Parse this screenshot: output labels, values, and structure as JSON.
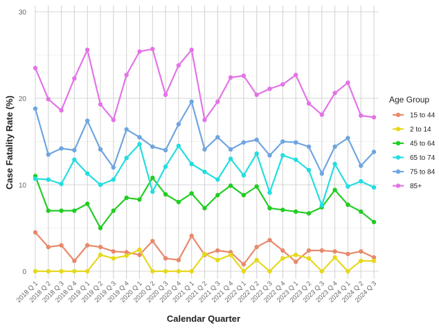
{
  "chart_data": {
    "type": "line",
    "xlabel": "Calendar Quarter",
    "ylabel": "Case Fatality Rate (%)",
    "ylim": [
      -1,
      30
    ],
    "yticks": [
      0,
      10,
      20,
      30
    ],
    "grid": true,
    "legend_position": "right",
    "legend_title": "Age Group",
    "categories": [
      "2018 Q 1",
      "2018 Q 2",
      "2018 Q 3",
      "2018 Q 4",
      "2019 Q 1",
      "2019 Q 2",
      "2019 Q 3",
      "2019 Q 4",
      "2020 Q 1",
      "2020 Q 2",
      "2020 Q 3",
      "2020 Q 4",
      "2021 Q 1",
      "2021 Q 2",
      "2021 Q 3",
      "2021 Q 4",
      "2022 Q 1",
      "2022 Q 2",
      "2022 Q 3",
      "2022 Q 4",
      "2023 Q 1",
      "2023 Q 2",
      "2023 Q 3",
      "2023 Q 4",
      "2024 Q 1",
      "2024 Q 2",
      "2024 Q 3"
    ],
    "series": [
      {
        "name": "15 to 44",
        "color": "#E8896B",
        "values": [
          4.5,
          2.8,
          3.0,
          1.2,
          3.0,
          2.8,
          2.3,
          2.2,
          1.9,
          3.5,
          1.5,
          1.3,
          4.1,
          1.9,
          2.4,
          2.2,
          0.8,
          2.8,
          3.6,
          2.4,
          1.1,
          2.4,
          2.4,
          2.3,
          2.0,
          2.3,
          1.6
        ]
      },
      {
        "name": "2 to 14",
        "color": "#E6D81C",
        "values": [
          0.0,
          0.0,
          0.0,
          0.0,
          0.0,
          1.9,
          1.5,
          1.8,
          2.5,
          0.0,
          0.0,
          0.0,
          0.0,
          2.0,
          1.3,
          1.9,
          0.0,
          1.3,
          0.0,
          1.5,
          1.9,
          1.5,
          0.0,
          1.6,
          0.0,
          1.2,
          1.2
        ]
      },
      {
        "name": "45 to 64",
        "color": "#22CC22",
        "values": [
          11.0,
          7.0,
          7.0,
          7.0,
          7.8,
          5.0,
          7.0,
          8.5,
          8.3,
          10.8,
          8.9,
          8.0,
          9.0,
          7.3,
          8.8,
          9.9,
          8.8,
          9.8,
          7.3,
          7.1,
          6.9,
          6.7,
          7.4,
          9.4,
          7.7,
          6.9,
          5.7
        ]
      },
      {
        "name": "65 to 74",
        "color": "#22DDE0",
        "values": [
          10.7,
          10.6,
          10.1,
          12.9,
          11.3,
          10.0,
          10.6,
          13.1,
          14.7,
          9.2,
          12.1,
          14.5,
          12.4,
          11.5,
          10.6,
          13.0,
          11.1,
          13.6,
          9.1,
          13.4,
          12.9,
          11.7,
          7.6,
          12.4,
          9.8,
          10.4,
          9.7
        ]
      },
      {
        "name": "75 to 84",
        "color": "#6FA5E0",
        "values": [
          18.8,
          13.5,
          14.2,
          14.0,
          17.4,
          14.1,
          12.0,
          16.4,
          15.5,
          14.4,
          14.0,
          17.0,
          19.6,
          14.1,
          15.5,
          14.1,
          14.9,
          15.2,
          13.4,
          15.0,
          14.9,
          14.4,
          11.3,
          14.4,
          15.4,
          12.2,
          13.8
        ]
      },
      {
        "name": "85+",
        "color": "#E373E6",
        "values": [
          23.5,
          19.9,
          18.6,
          22.3,
          25.6,
          19.3,
          17.5,
          22.7,
          25.4,
          25.7,
          20.4,
          23.8,
          25.6,
          17.5,
          19.6,
          22.4,
          22.6,
          20.4,
          21.1,
          21.6,
          22.7,
          19.4,
          18.1,
          20.6,
          21.8,
          18.0,
          17.8
        ]
      }
    ]
  }
}
